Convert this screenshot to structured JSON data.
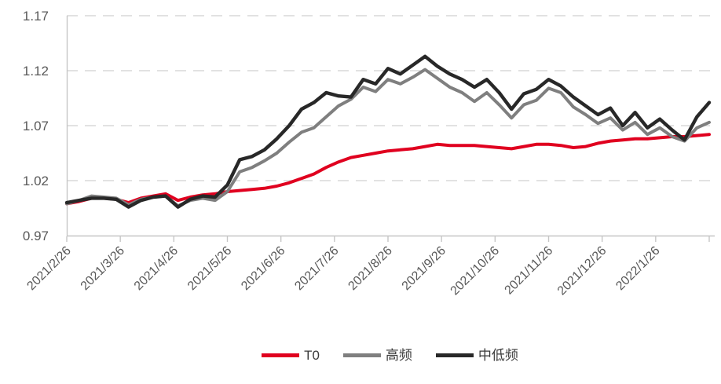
{
  "chart_data": {
    "type": "line",
    "title": "",
    "xlabel": "",
    "ylabel": "",
    "x_frequency": "weekly",
    "n_points": 53,
    "x_tick_labels": [
      "2021/2/26",
      "2021/3/26",
      "2021/4/26",
      "2021/5/26",
      "2021/6/26",
      "2021/7/26",
      "2021/8/26",
      "2021/9/26",
      "2021/10/26",
      "2021/11/26",
      "2021/12/26",
      "2022/1/26"
    ],
    "x_tick_count": 13,
    "y_ticks": [
      0.97,
      1.02,
      1.07,
      1.12,
      1.17
    ],
    "y_tick_labels": [
      "0.97",
      "1.02",
      "1.07",
      "1.12",
      "1.17"
    ],
    "ylim": [
      0.97,
      1.17
    ],
    "grid": "horizontal-dashed",
    "legend_position": "bottom",
    "series": [
      {
        "name": "T0",
        "color": "#e0001f",
        "width": 4,
        "values": [
          0.999,
          1.001,
          1.004,
          1.004,
          1.003,
          1.0,
          1.004,
          1.006,
          1.008,
          1.002,
          1.005,
          1.007,
          1.008,
          1.01,
          1.011,
          1.012,
          1.013,
          1.015,
          1.018,
          1.022,
          1.026,
          1.032,
          1.037,
          1.041,
          1.043,
          1.045,
          1.047,
          1.048,
          1.049,
          1.051,
          1.053,
          1.052,
          1.052,
          1.052,
          1.051,
          1.05,
          1.049,
          1.051,
          1.053,
          1.053,
          1.052,
          1.05,
          1.051,
          1.054,
          1.056,
          1.057,
          1.058,
          1.058,
          1.059,
          1.06,
          1.06,
          1.061,
          1.062
        ]
      },
      {
        "name": "高频",
        "color": "#7f7f7f",
        "width": 4,
        "values": [
          0.999,
          1.002,
          1.006,
          1.005,
          1.004,
          0.998,
          1.003,
          1.005,
          1.006,
          0.997,
          1.002,
          1.004,
          1.002,
          1.01,
          1.028,
          1.032,
          1.038,
          1.045,
          1.055,
          1.064,
          1.068,
          1.078,
          1.088,
          1.094,
          1.105,
          1.101,
          1.112,
          1.108,
          1.114,
          1.121,
          1.113,
          1.105,
          1.1,
          1.092,
          1.1,
          1.089,
          1.077,
          1.089,
          1.093,
          1.104,
          1.1,
          1.087,
          1.08,
          1.072,
          1.077,
          1.066,
          1.073,
          1.062,
          1.068,
          1.06,
          1.056,
          1.068,
          1.073
        ]
      },
      {
        "name": "中低频",
        "color": "#282828",
        "width": 4.4,
        "values": [
          1.0,
          1.002,
          1.004,
          1.004,
          1.003,
          0.996,
          1.002,
          1.005,
          1.006,
          0.996,
          1.003,
          1.006,
          1.005,
          1.016,
          1.039,
          1.042,
          1.048,
          1.058,
          1.07,
          1.085,
          1.091,
          1.1,
          1.097,
          1.096,
          1.112,
          1.108,
          1.122,
          1.117,
          1.125,
          1.133,
          1.124,
          1.117,
          1.112,
          1.105,
          1.112,
          1.1,
          1.085,
          1.099,
          1.103,
          1.112,
          1.106,
          1.096,
          1.088,
          1.08,
          1.086,
          1.07,
          1.082,
          1.068,
          1.076,
          1.066,
          1.057,
          1.078,
          1.091
        ]
      }
    ],
    "style": {
      "grid_color": "#d9d9d9",
      "axis_color": "#c6c6c6",
      "tick_label_color": "#595959",
      "background": "#ffffff",
      "x_label_rotation_deg": -45
    }
  }
}
